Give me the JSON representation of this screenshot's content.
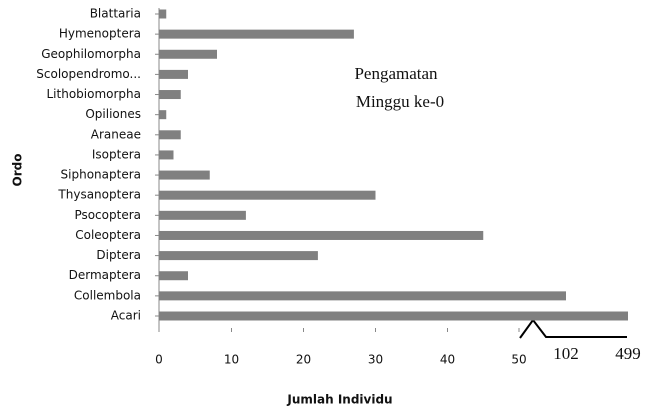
{
  "chart_data": {
    "type": "bar",
    "orientation": "horizontal",
    "title": [
      "Pengamatan",
      "Minggu ke-0"
    ],
    "xlabel": "Jumlah Individu",
    "ylabel": "Ordo",
    "categories": [
      "Blattaria",
      "Hymenoptera",
      "Geophilomorpha",
      "Scolopendromo...",
      "Lithobiomorpha",
      "Opiliones",
      "Araneae",
      "Isoptera",
      "Siphonaptera",
      "Thysanoptera",
      "Psocoptera",
      "Coleoptera",
      "Diptera",
      "Dermaptera",
      "Collembola",
      "Acari"
    ],
    "values": [
      1,
      27,
      8,
      4,
      3,
      1,
      3,
      2,
      7,
      30,
      12,
      45,
      22,
      4,
      102,
      499
    ],
    "color": "#808080",
    "xlim": [
      0,
      499
    ],
    "xticks": [
      0,
      10,
      20,
      30,
      40,
      50,
      102,
      499
    ],
    "axis_break": true
  }
}
